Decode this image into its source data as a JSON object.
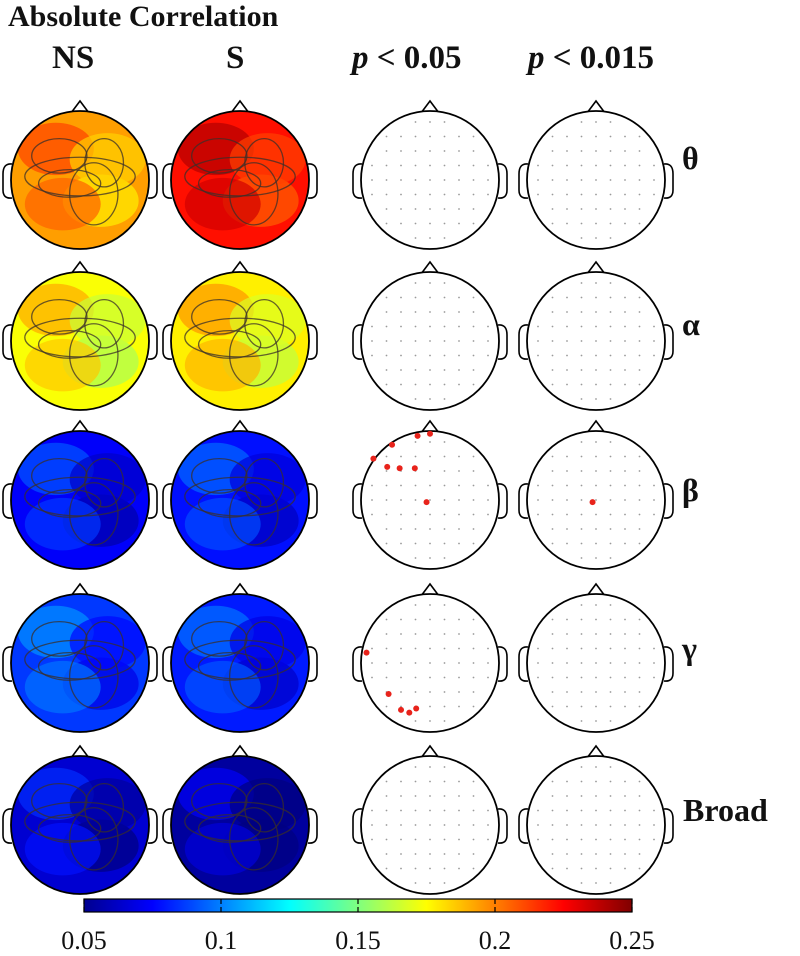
{
  "figure": {
    "title": "Absolute Correlation",
    "columns": [
      {
        "label": "NS"
      },
      {
        "label": "S"
      },
      {
        "label_italic": "p",
        "label_rest": " < 0.05"
      },
      {
        "label_italic": "p",
        "label_rest": " < 0.015"
      }
    ],
    "bands": [
      {
        "label": "θ",
        "ns_level": 0.72,
        "s_level": 0.86,
        "sig005": [],
        "sig0015": []
      },
      {
        "label": "α",
        "ns_level": 0.62,
        "s_level": 0.64,
        "sig005": [],
        "sig0015": []
      },
      {
        "label": "β",
        "ns_level": 0.12,
        "s_level": 0.14,
        "sig005": [
          "Fp1",
          "Fpz",
          "AF7",
          "F7",
          "F5",
          "F3",
          "F1",
          "C1"
        ],
        "sig0015": [
          "C1"
        ]
      },
      {
        "label": "γ",
        "ns_level": 0.18,
        "s_level": 0.15,
        "sig005": [
          "FT7",
          "P5",
          "PO7",
          "PO5",
          "PO3"
        ],
        "sig0015": []
      },
      {
        "label": "Broad",
        "ns_level": 0.08,
        "s_level": 0.03,
        "sig005": [],
        "sig0015": []
      }
    ],
    "colorbar": {
      "min": 0.05,
      "max": 0.25,
      "colormap": "jet",
      "ticks": [
        "0.05",
        "0.1",
        "0.15",
        "0.2",
        "0.25"
      ]
    },
    "sig_marker_color": "#e8231b"
  }
}
